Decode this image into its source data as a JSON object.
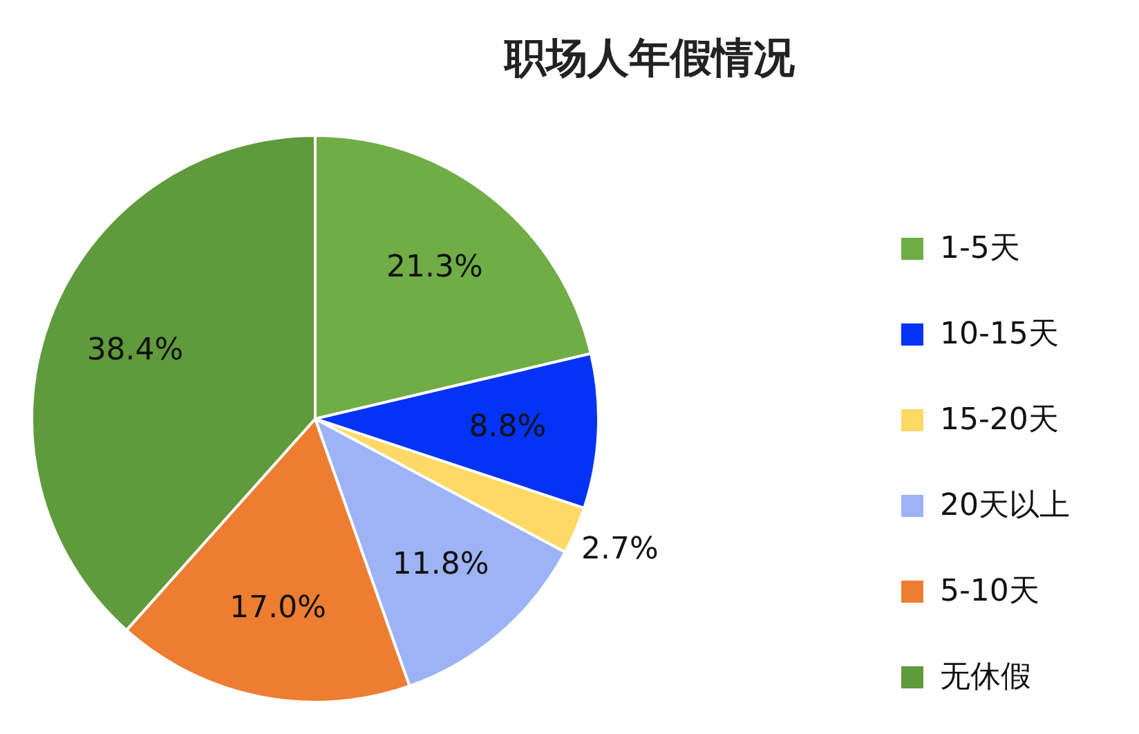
{
  "chart_data": {
    "type": "pie",
    "title": "职场人年假情况",
    "categories": [
      "1-5天",
      "10-15天",
      "15-20天",
      "20天以上",
      "5-10天",
      "无休假"
    ],
    "values": [
      21.3,
      8.8,
      2.7,
      11.8,
      17.0,
      38.4
    ],
    "value_labels": [
      "21.3%",
      "8.8%",
      "2.7%",
      "11.8%",
      "17.0%",
      "38.4%"
    ],
    "colors": [
      "#70ad47",
      "#0433f5",
      "#ffd966",
      "#9db3f5",
      "#ed7d31",
      "#5f9a3c"
    ],
    "legend": "right"
  }
}
